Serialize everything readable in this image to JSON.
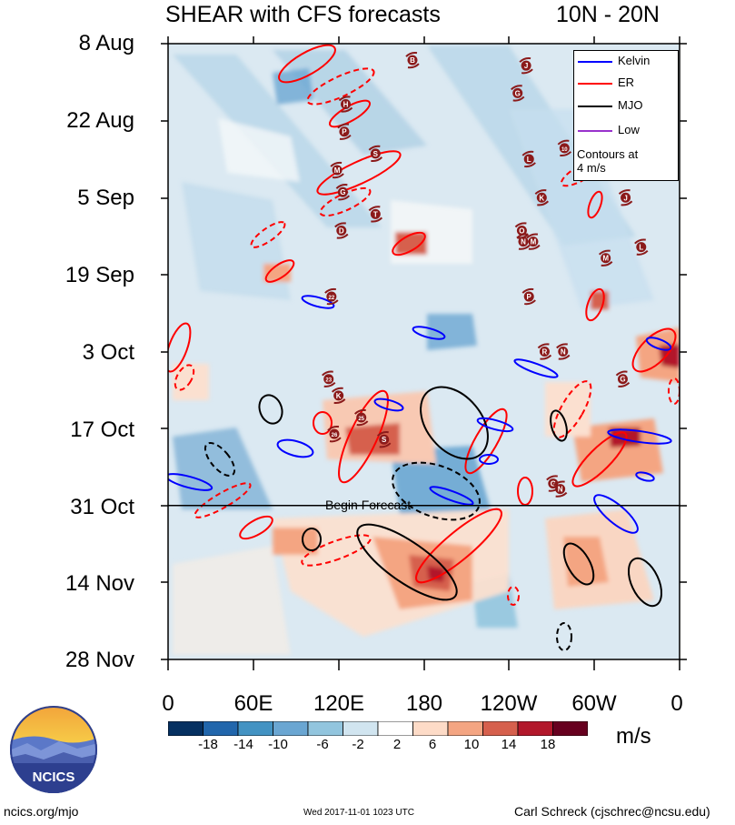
{
  "header": {
    "title": "SHEAR with CFS forecasts",
    "region": "10N - 20N"
  },
  "chart_data": {
    "type": "heatmap",
    "title": "SHEAR with CFS forecasts",
    "region": "10N - 20N",
    "x_tick_labels": [
      "0",
      "60E",
      "120E",
      "180",
      "120W",
      "60W",
      "0"
    ],
    "x_range_deg": [
      0,
      360
    ],
    "y_tick_labels": [
      "8 Aug",
      "22 Aug",
      "5 Sep",
      "19 Sep",
      "3 Oct",
      "17 Oct",
      "31 Oct",
      "14 Nov",
      "28 Nov"
    ],
    "y_range_days": [
      0,
      112
    ],
    "forecast_start_label": "Begin Forecast",
    "forecast_start_day": 84,
    "colorbar": {
      "units": "m/s",
      "labels": [
        "-18",
        "-14",
        "-10",
        "-6",
        "-2",
        "2",
        "6",
        "10",
        "14",
        "18"
      ],
      "colors": [
        "#053061",
        "#2166ac",
        "#4393c3",
        "#6aa6d2",
        "#92c5de",
        "#d1e5f0",
        "#ffffff",
        "#fddbc7",
        "#f4a582",
        "#d6604d",
        "#b2182b",
        "#67001f"
      ]
    },
    "legend": {
      "items": [
        {
          "label": "Kelvin",
          "color": "#0000ff"
        },
        {
          "label": "ER",
          "color": "#ff0000"
        },
        {
          "label": "MJO",
          "color": "#000000"
        },
        {
          "label": "Low",
          "color": "#9932cc"
        }
      ],
      "note_line1": "Contours at",
      "note_line2": "4 m/s"
    },
    "storm_markers": [
      {
        "label": "B",
        "lon": 172,
        "day": 3
      },
      {
        "label": "J",
        "lon": 252,
        "day": 4
      },
      {
        "label": "G",
        "lon": 246,
        "day": 9
      },
      {
        "label": "H",
        "lon": 125,
        "day": 11
      },
      {
        "label": "P",
        "lon": 124,
        "day": 16
      },
      {
        "label": "S",
        "lon": 146,
        "day": 20
      },
      {
        "label": "10",
        "lon": 279,
        "day": 19
      },
      {
        "label": "L",
        "lon": 254,
        "day": 21
      },
      {
        "label": "M",
        "lon": 119,
        "day": 23
      },
      {
        "label": "G",
        "lon": 123,
        "day": 27
      },
      {
        "label": "K",
        "lon": 263,
        "day": 28
      },
      {
        "label": "J",
        "lon": 322,
        "day": 28
      },
      {
        "label": "T",
        "lon": 146,
        "day": 31
      },
      {
        "label": "D",
        "lon": 122,
        "day": 34
      },
      {
        "label": "O",
        "lon": 249,
        "day": 34
      },
      {
        "label": "N",
        "lon": 250,
        "day": 36
      },
      {
        "label": "M",
        "lon": 257,
        "day": 36
      },
      {
        "label": "L",
        "lon": 333,
        "day": 37
      },
      {
        "label": "M",
        "lon": 308,
        "day": 39
      },
      {
        "label": "22",
        "lon": 115,
        "day": 46
      },
      {
        "label": "P",
        "lon": 254,
        "day": 46
      },
      {
        "label": "R",
        "lon": 265,
        "day": 56
      },
      {
        "label": "N",
        "lon": 278,
        "day": 56
      },
      {
        "label": "23",
        "lon": 113,
        "day": 61
      },
      {
        "label": "G",
        "lon": 320,
        "day": 61
      },
      {
        "label": "K",
        "lon": 120,
        "day": 64
      },
      {
        "label": "25",
        "lon": 136,
        "day": 68
      },
      {
        "label": "26",
        "lon": 117,
        "day": 71
      },
      {
        "label": "S",
        "lon": 152,
        "day": 72
      },
      {
        "label": "G",
        "lon": 271,
        "day": 80
      },
      {
        "label": "N",
        "lon": 276,
        "day": 81
      }
    ]
  },
  "footer": {
    "logo_text": "NCICS",
    "site": "ncics.org/mjo",
    "timestamp": "Wed 2017-11-01 1023 UTC",
    "author": "Carl Schreck (cjschrec@ncsu.edu)"
  }
}
